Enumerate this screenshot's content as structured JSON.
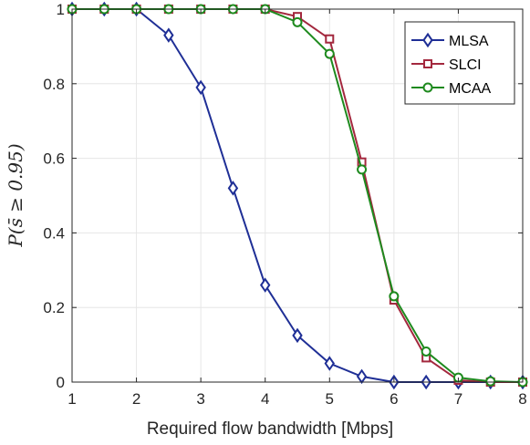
{
  "chart_data": {
    "type": "line",
    "title": "",
    "xlabel": "Required flow bandwidth [Mbps]",
    "ylabel": "P(s̄ ≥ 0.95)",
    "xlim": [
      1,
      8
    ],
    "ylim": [
      0,
      1
    ],
    "xticks": [
      "1",
      "2",
      "3",
      "4",
      "5",
      "6",
      "7",
      "8"
    ],
    "yticks": [
      "0",
      "0.2",
      "0.4",
      "0.6",
      "0.8",
      "1"
    ],
    "grid": true,
    "legend_position": "top-right",
    "x": [
      1,
      1.5,
      2,
      2.5,
      3,
      3.5,
      4,
      4.5,
      5,
      5.5,
      6,
      6.5,
      7,
      7.5,
      8
    ],
    "series": [
      {
        "name": "MLSA",
        "color": "#1f2f96",
        "marker": "diamond",
        "values": [
          1,
          1,
          1,
          0.93,
          0.79,
          0.52,
          0.26,
          0.125,
          0.05,
          0.015,
          0,
          0,
          0,
          0,
          0
        ]
      },
      {
        "name": "SLCI",
        "color": "#a3283e",
        "marker": "square",
        "values": [
          1,
          1,
          1,
          1,
          1,
          1,
          1,
          0.98,
          0.92,
          0.59,
          0.22,
          0.065,
          0.005,
          0,
          0
        ]
      },
      {
        "name": "MCAA",
        "color": "#1e8a1e",
        "marker": "circle",
        "values": [
          1,
          1,
          1,
          1,
          1,
          1,
          1,
          0.965,
          0.88,
          0.57,
          0.23,
          0.082,
          0.012,
          0.002,
          0
        ]
      }
    ]
  }
}
